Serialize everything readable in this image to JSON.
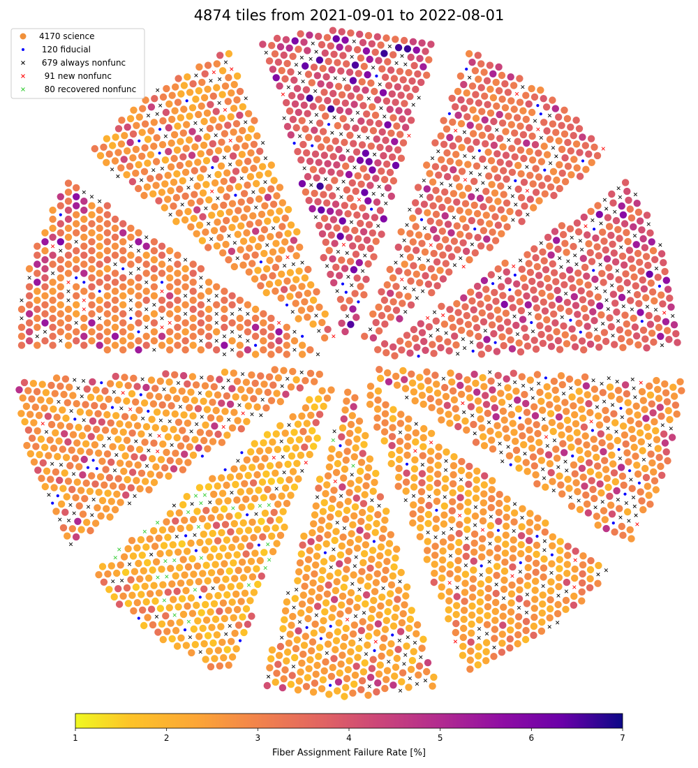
{
  "chart_data": {
    "type": "scatter",
    "title": "4874 tiles from 2021-09-01 to 2022-08-01",
    "legend_placement": "upper-left",
    "grid": false,
    "axes_visible": false,
    "legend": [
      {
        "key": "science",
        "label": "4170 science",
        "marker": "circle",
        "color": "#f0903a"
      },
      {
        "key": "fiducial",
        "label": " 120 fiducial",
        "marker": "dot",
        "color": "#0000ff"
      },
      {
        "key": "always",
        "label": " 679 always nonfunc",
        "marker": "x",
        "color": "#000000"
      },
      {
        "key": "new",
        "label": "  91 new nonfunc",
        "marker": "x",
        "color": "#ff0000"
      },
      {
        "key": "recovered",
        "label": "  80 recovered nonfunc",
        "marker": "x",
        "color": "#33cc33"
      }
    ],
    "counts": {
      "science": 4170,
      "fiducial": 120,
      "always_nonfunc": 679,
      "new_nonfunc": 91,
      "recovered_nonfunc": 80
    },
    "colorbar": {
      "label": "Fiber Assignment Failure Rate [%]",
      "cmap": "plasma",
      "range": [
        1,
        7
      ],
      "ticks": [
        "1",
        "2",
        "3",
        "4",
        "5",
        "6",
        "7"
      ]
    },
    "petals": [
      {
        "id": 0,
        "dominant_rate_pct": 2.6,
        "high_rate_pct": 4.3
      },
      {
        "id": 1,
        "dominant_rate_pct": 2.4,
        "high_rate_pct": 3.6
      },
      {
        "id": 2,
        "dominant_rate_pct": 2.3,
        "high_rate_pct": 3.9
      },
      {
        "id": 3,
        "dominant_rate_pct": 2.1,
        "high_rate_pct": 3.3
      },
      {
        "id": 4,
        "dominant_rate_pct": 2.6,
        "high_rate_pct": 4.0
      },
      {
        "id": 5,
        "dominant_rate_pct": 3.0,
        "high_rate_pct": 5.0
      },
      {
        "id": 6,
        "dominant_rate_pct": 2.6,
        "high_rate_pct": 4.2
      },
      {
        "id": 7,
        "dominant_rate_pct": 3.8,
        "high_rate_pct": 6.0
      },
      {
        "id": 8,
        "dominant_rate_pct": 3.3,
        "high_rate_pct": 4.5
      },
      {
        "id": 9,
        "dominant_rate_pct": 3.6,
        "high_rate_pct": 5.2
      }
    ]
  }
}
